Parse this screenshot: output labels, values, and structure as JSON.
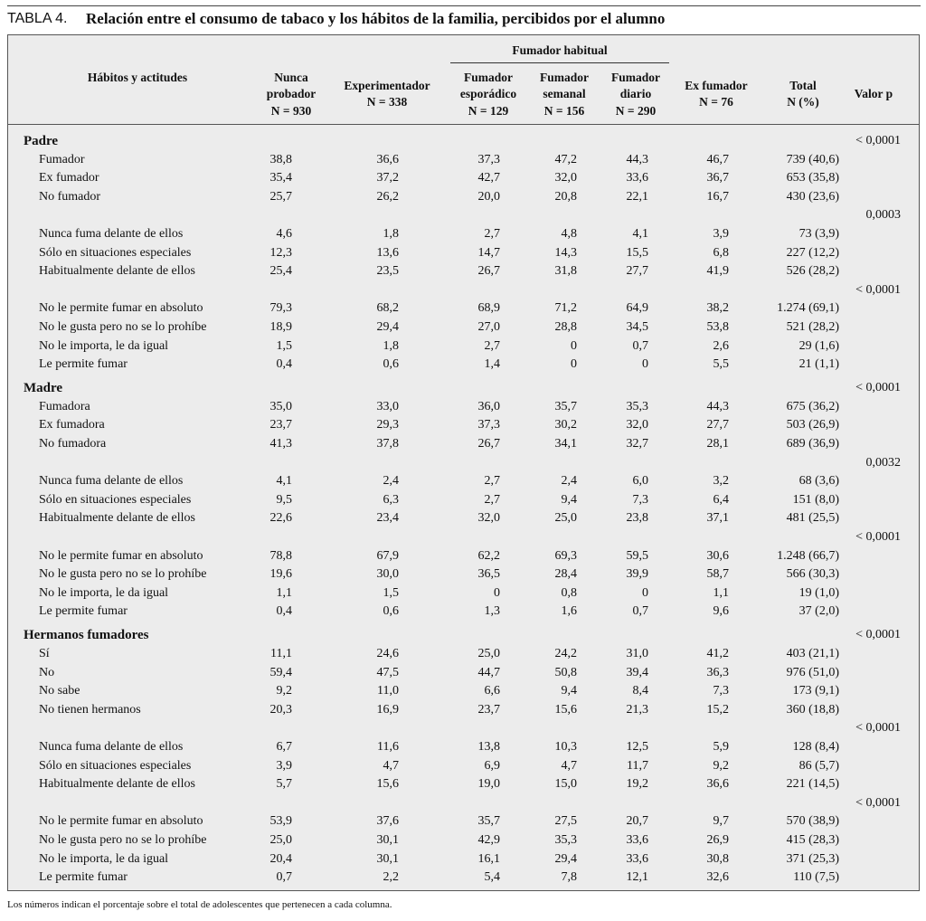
{
  "title": {
    "label": "TABLA 4.",
    "text": "Relación entre el consumo de tabaco y los hábitos de la familia, percibidos por el alumno"
  },
  "table": {
    "group_header": "Fumador habitual",
    "columns": [
      [
        "Hábitos y actitudes"
      ],
      [
        "Nunca",
        "probador",
        "N = 930"
      ],
      [
        "Experimentador",
        "N = 338"
      ],
      [
        "Fumador",
        "esporádico",
        "N = 129"
      ],
      [
        "Fumador",
        "semanal",
        "N = 156"
      ],
      [
        "Fumador",
        "diario",
        "N = 290"
      ],
      [
        "Ex fumador",
        "N = 76"
      ],
      [
        "Total",
        "N (%)"
      ],
      [
        "Valor p"
      ]
    ],
    "sections": [
      {
        "name": "Padre",
        "blocks": [
          {
            "p": "< 0,0001",
            "rows": [
              [
                "Fumador",
                "38,8",
                "36,6",
                "37,3",
                "47,2",
                "44,3",
                "46,7",
                "739 (40,6)"
              ],
              [
                "Ex fumador",
                "35,4",
                "37,2",
                "42,7",
                "32,0",
                "33,6",
                "36,7",
                "653 (35,8)"
              ],
              [
                "No fumador",
                "25,7",
                "26,2",
                "20,0",
                "20,8",
                "22,1",
                "16,7",
                "430 (23,6)"
              ]
            ]
          },
          {
            "p": "0,0003",
            "rows": [
              [
                "Nunca fuma delante de ellos",
                "4,6",
                "1,8",
                "2,7",
                "4,8",
                "4,1",
                "3,9",
                "73 (3,9)"
              ],
              [
                "Sólo en situaciones especiales",
                "12,3",
                "13,6",
                "14,7",
                "14,3",
                "15,5",
                "6,8",
                "227 (12,2)"
              ],
              [
                "Habitualmente delante de ellos",
                "25,4",
                "23,5",
                "26,7",
                "31,8",
                "27,7",
                "41,9",
                "526 (28,2)"
              ]
            ]
          },
          {
            "p": "< 0,0001",
            "rows": [
              [
                "No le permite fumar en absoluto",
                "79,3",
                "68,2",
                "68,9",
                "71,2",
                "64,9",
                "38,2",
                "1.274 (69,1)"
              ],
              [
                "No le gusta pero no se lo prohíbe",
                "18,9",
                "29,4",
                "27,0",
                "28,8",
                "34,5",
                "53,8",
                "521 (28,2)"
              ],
              [
                "No le importa, le da igual",
                "1,5",
                "1,8",
                "2,7",
                "0",
                "0,7",
                "2,6",
                "29 (1,6)"
              ],
              [
                "Le permite fumar",
                "0,4",
                "0,6",
                "1,4",
                "0",
                "0",
                "5,5",
                "21 (1,1)"
              ]
            ]
          }
        ]
      },
      {
        "name": "Madre",
        "blocks": [
          {
            "p": "< 0,0001",
            "rows": [
              [
                "Fumadora",
                "35,0",
                "33,0",
                "36,0",
                "35,7",
                "35,3",
                "44,3",
                "675 (36,2)"
              ],
              [
                "Ex fumadora",
                "23,7",
                "29,3",
                "37,3",
                "30,2",
                "32,0",
                "27,7",
                "503 (26,9)"
              ],
              [
                "No fumadora",
                "41,3",
                "37,8",
                "26,7",
                "34,1",
                "32,7",
                "28,1",
                "689 (36,9)"
              ]
            ]
          },
          {
            "p": "0,0032",
            "rows": [
              [
                "Nunca fuma delante de ellos",
                "4,1",
                "2,4",
                "2,7",
                "2,4",
                "6,0",
                "3,2",
                "68 (3,6)"
              ],
              [
                "Sólo en situaciones especiales",
                "9,5",
                "6,3",
                "2,7",
                "9,4",
                "7,3",
                "6,4",
                "151 (8,0)"
              ],
              [
                "Habitualmente delante de ellos",
                "22,6",
                "23,4",
                "32,0",
                "25,0",
                "23,8",
                "37,1",
                "481 (25,5)"
              ]
            ]
          },
          {
            "p": "< 0,0001",
            "rows": [
              [
                "No le permite fumar en absoluto",
                "78,8",
                "67,9",
                "62,2",
                "69,3",
                "59,5",
                "30,6",
                "1.248 (66,7)"
              ],
              [
                "No le gusta pero no se lo prohíbe",
                "19,6",
                "30,0",
                "36,5",
                "28,4",
                "39,9",
                "58,7",
                "566 (30,3)"
              ],
              [
                "No le importa, le da igual",
                "1,1",
                "1,5",
                "0",
                "0,8",
                "0",
                "1,1",
                "19 (1,0)"
              ],
              [
                "Le permite fumar",
                "0,4",
                "0,6",
                "1,3",
                "1,6",
                "0,7",
                "9,6",
                "37 (2,0)"
              ]
            ]
          }
        ]
      },
      {
        "name": "Hermanos fumadores",
        "blocks": [
          {
            "p": "< 0,0001",
            "rows": [
              [
                "Sí",
                "11,1",
                "24,6",
                "25,0",
                "24,2",
                "31,0",
                "41,2",
                "403 (21,1)"
              ],
              [
                "No",
                "59,4",
                "47,5",
                "44,7",
                "50,8",
                "39,4",
                "36,3",
                "976 (51,0)"
              ],
              [
                "No sabe",
                "9,2",
                "11,0",
                "6,6",
                "9,4",
                "8,4",
                "7,3",
                "173 (9,1)"
              ],
              [
                "No tienen hermanos",
                "20,3",
                "16,9",
                "23,7",
                "15,6",
                "21,3",
                "15,2",
                "360 (18,8)"
              ]
            ]
          },
          {
            "p": "< 0,0001",
            "rows": [
              [
                "Nunca fuma delante de ellos",
                "6,7",
                "11,6",
                "13,8",
                "10,3",
                "12,5",
                "5,9",
                "128 (8,4)"
              ],
              [
                "Sólo en situaciones especiales",
                "3,9",
                "4,7",
                "6,9",
                "4,7",
                "11,7",
                "9,2",
                "86 (5,7)"
              ],
              [
                "Habitualmente delante de ellos",
                "5,7",
                "15,6",
                "19,0",
                "15,0",
                "19,2",
                "36,6",
                "221 (14,5)"
              ]
            ]
          },
          {
            "p": "< 0,0001",
            "rows": [
              [
                "No le permite fumar en absoluto",
                "53,9",
                "37,6",
                "35,7",
                "27,5",
                "20,7",
                "9,7",
                "570 (38,9)"
              ],
              [
                "No le gusta pero no se lo prohíbe",
                "25,0",
                "30,1",
                "42,9",
                "35,3",
                "33,6",
                "26,9",
                "415 (28,3)"
              ],
              [
                "No le importa, le da igual",
                "20,4",
                "30,1",
                "16,1",
                "29,4",
                "33,6",
                "30,8",
                "371 (25,3)"
              ],
              [
                "Le permite fumar",
                "0,7",
                "2,2",
                "5,4",
                "7,8",
                "12,1",
                "32,6",
                "110 (7,5)"
              ]
            ]
          }
        ]
      }
    ]
  },
  "footnote": "Los números indican el porcentaje sobre el total de adolescentes que pertenecen a cada columna."
}
